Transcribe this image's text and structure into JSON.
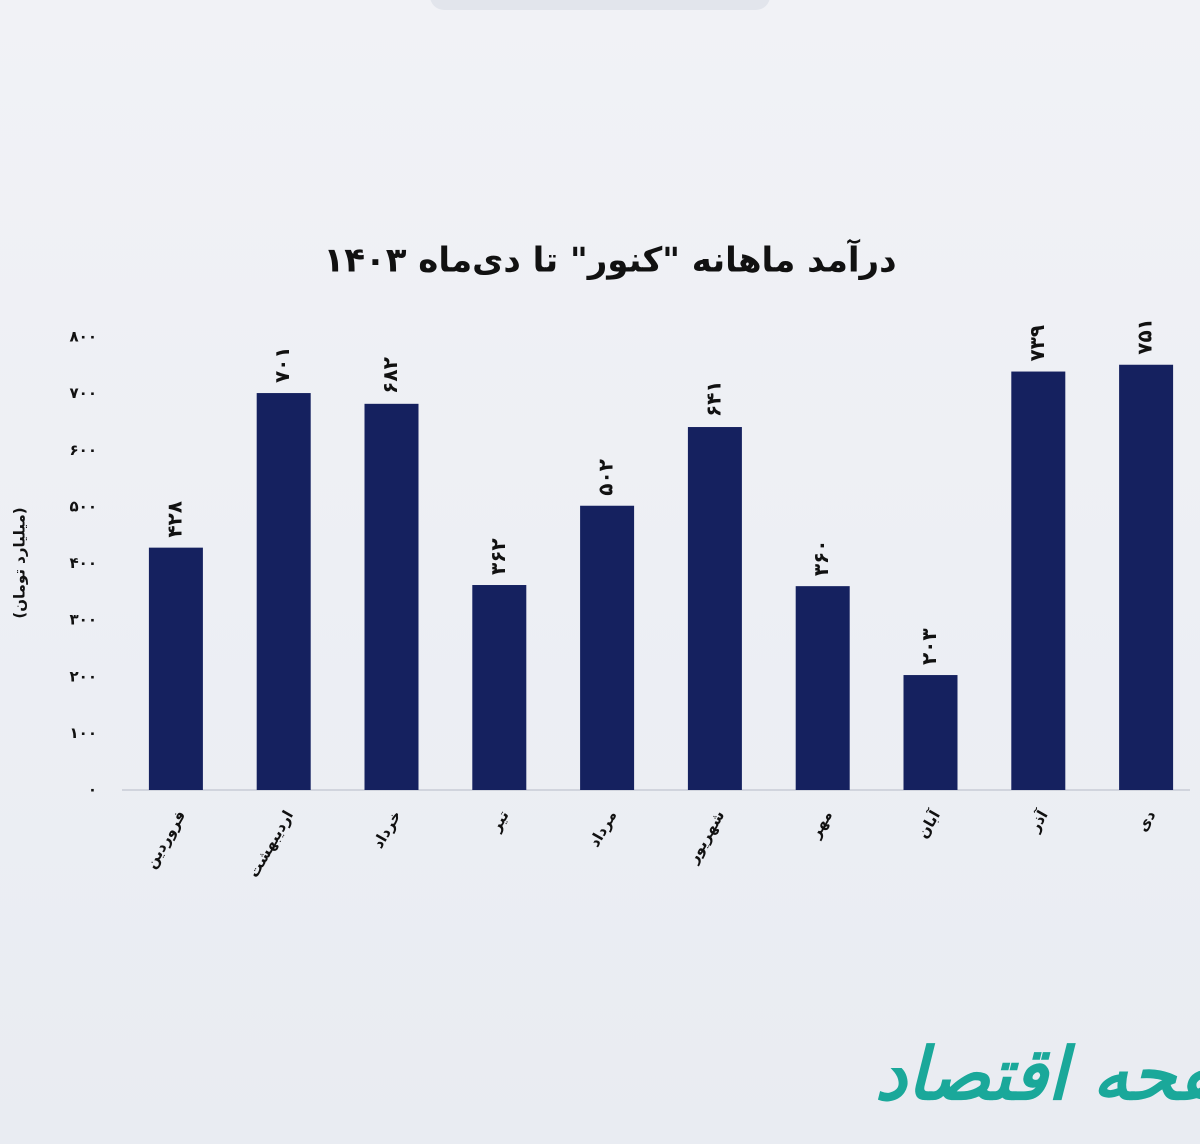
{
  "chart_data": {
    "type": "bar",
    "title": "درآمد ماهانه \"کنور\" تا دی‌ماه ۱۴۰۳",
    "y_label": "(میلیارد تومان)",
    "categories": [
      "فروردین",
      "اردیبهشت",
      "خرداد",
      "تیر",
      "مرداد",
      "شهریور",
      "مهر",
      "آبان",
      "آذر",
      "دی"
    ],
    "values": [
      428,
      701,
      682,
      362,
      502,
      641,
      360,
      203,
      739,
      751
    ],
    "value_labels": [
      "۴۲۸",
      "۷۰۱",
      "۶۸۲",
      "۳۶۲",
      "۵۰۲",
      "۶۴۱",
      "۳۶۰",
      "۲۰۳",
      "۷۳۹",
      "۷۵۱"
    ],
    "color": "#15215f",
    "ylim": [
      0,
      800
    ],
    "yticks": [
      {
        "value": 0,
        "label": "۰"
      },
      {
        "value": 100,
        "label": "۱۰۰"
      },
      {
        "value": 200,
        "label": "۲۰۰"
      },
      {
        "value": 300,
        "label": "۳۰۰"
      },
      {
        "value": 400,
        "label": "۴۰۰"
      },
      {
        "value": 500,
        "label": "۵۰۰"
      },
      {
        "value": 600,
        "label": "۶۰۰"
      },
      {
        "value": 700,
        "label": "۷۰۰"
      },
      {
        "value": 800,
        "label": "۸۰۰"
      }
    ],
    "grid": false
  },
  "watermark": "صفحه اقتصاد"
}
